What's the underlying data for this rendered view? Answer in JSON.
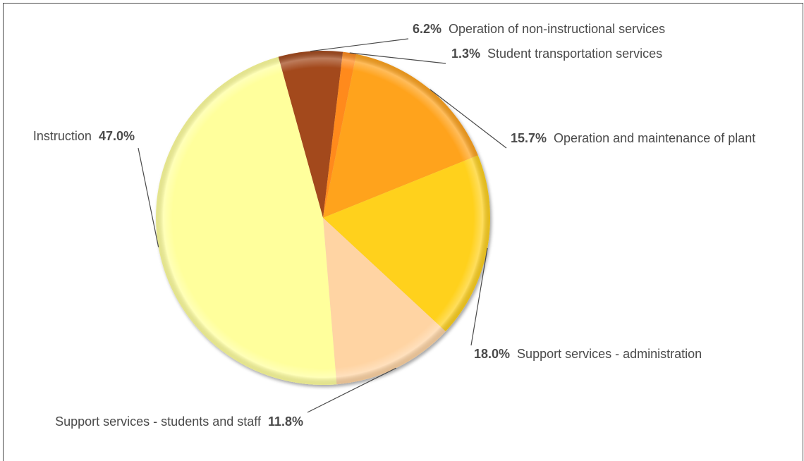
{
  "chart_data": {
    "type": "pie",
    "title": "",
    "start_angle_deg": -15.5,
    "direction": "clockwise",
    "slices": [
      {
        "label": "Operation of non-instructional services",
        "value": 6.2,
        "pct_text": "6.2%",
        "color": "#a3481c"
      },
      {
        "label": "Student transportation services",
        "value": 1.3,
        "pct_text": "1.3%",
        "color": "#ff8a1f"
      },
      {
        "label": "Operation and maintenance of plant",
        "value": 15.7,
        "pct_text": "15.7%",
        "color": "#ffa31f"
      },
      {
        "label": "Support services - administration",
        "value": 18.0,
        "pct_text": "18.0%",
        "color": "#ffd11f"
      },
      {
        "label": "Support services - students and staff",
        "value": 11.8,
        "pct_text": "11.8%",
        "color": "#ffd4a3"
      },
      {
        "label": "Instruction",
        "value": 47.0,
        "pct_text": "47.0%",
        "color": "#ffff9c"
      }
    ]
  }
}
